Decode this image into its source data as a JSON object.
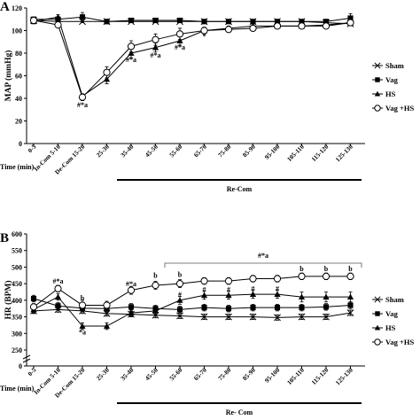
{
  "chart_data": [
    {
      "panel": "A",
      "type": "line",
      "ylabel": "MAP (mmHg)",
      "xlabel": "Time (min)",
      "ylim": [
        0,
        120
      ],
      "yticks": [
        0,
        20,
        40,
        60,
        80,
        100,
        120
      ],
      "categories": [
        "0-5",
        "In-Com 5-10",
        "De-Com 15-20",
        "25-30",
        "35-40",
        "45-50",
        "55-60",
        "65-70",
        "75-80",
        "85-90",
        "95-100",
        "105-110",
        "115-120",
        "125-130"
      ],
      "series": [
        {
          "name": "Sham",
          "marker": "x",
          "values": [
            109,
            108,
            108,
            108,
            108,
            108,
            108,
            108,
            108,
            108,
            108,
            108,
            107,
            106
          ],
          "errors": [
            1,
            1,
            1,
            1,
            1,
            1,
            1,
            1,
            1,
            1,
            1,
            1,
            1,
            1
          ]
        },
        {
          "name": "Vag",
          "marker": "square",
          "values": [
            110,
            110,
            112,
            108,
            109,
            109,
            109,
            108,
            108,
            108,
            108,
            108,
            108,
            111
          ],
          "errors": [
            2,
            2,
            4,
            2,
            1,
            1,
            1,
            1,
            1,
            1,
            1,
            1,
            1,
            4
          ]
        },
        {
          "name": "HS",
          "marker": "triangle",
          "values": [
            108,
            112,
            42,
            57,
            80,
            85,
            91,
            100,
            102,
            104,
            104,
            104,
            105,
            107
          ],
          "errors": [
            2,
            2,
            2,
            4,
            4,
            4,
            4,
            2,
            2,
            2,
            2,
            2,
            2,
            2
          ]
        },
        {
          "name": "Vag +HS",
          "marker": "circle",
          "values": [
            109,
            105,
            41,
            63,
            86,
            92,
            97,
            100,
            101,
            102,
            104,
            104,
            104,
            107
          ],
          "errors": [
            2,
            2,
            3,
            5,
            5,
            5,
            5,
            3,
            2,
            2,
            2,
            2,
            2,
            2
          ]
        }
      ],
      "annotations": [
        {
          "text": "#*a",
          "category": "De-Com 15-20",
          "value": 32
        },
        {
          "text": "#*a",
          "category": "35-40",
          "value": 72
        },
        {
          "text": "#*a",
          "category": "45-50",
          "value": 76
        },
        {
          "text": "#*a",
          "category": "55-60",
          "value": 83
        },
        {
          "text": "*",
          "category": "65-70",
          "value": 93
        }
      ],
      "bar_label": "Re-Com"
    },
    {
      "panel": "B",
      "type": "line",
      "ylabel": "HR (BPM)",
      "xlabel": "Time (min)",
      "ylim": [
        0,
        600
      ],
      "yticks": [
        0,
        250,
        300,
        350,
        400,
        450,
        500,
        550,
        600
      ],
      "categories": [
        "0-5",
        "In-Com 5-10",
        "De-Com 15-20",
        "25-30",
        "35-40",
        "45-50",
        "55-60",
        "65-70",
        "75-80",
        "85-90",
        "95-100",
        "105-110",
        "115-120",
        "125-130"
      ],
      "series": [
        {
          "name": "Sham",
          "marker": "x",
          "values": [
            368,
            372,
            368,
            360,
            358,
            355,
            353,
            350,
            350,
            350,
            348,
            350,
            350,
            362
          ],
          "errors": [
            8,
            8,
            8,
            8,
            8,
            8,
            8,
            8,
            8,
            8,
            8,
            8,
            8,
            8
          ]
        },
        {
          "name": "Vag",
          "marker": "square",
          "values": [
            405,
            383,
            376,
            375,
            380,
            375,
            372,
            378,
            375,
            378,
            378,
            378,
            380,
            385
          ],
          "errors": [
            10,
            10,
            10,
            10,
            10,
            10,
            10,
            10,
            10,
            10,
            10,
            10,
            10,
            10
          ]
        },
        {
          "name": "HS",
          "marker": "triangle",
          "values": [
            372,
            410,
            322,
            322,
            362,
            368,
            400,
            415,
            415,
            418,
            418,
            410,
            410,
            410
          ],
          "errors": [
            10,
            10,
            10,
            10,
            10,
            12,
            12,
            12,
            12,
            12,
            12,
            15,
            15,
            15
          ]
        },
        {
          "name": "Vag +HS",
          "marker": "circle",
          "values": [
            380,
            435,
            385,
            385,
            430,
            445,
            450,
            458,
            458,
            465,
            465,
            472,
            472,
            472
          ],
          "errors": [
            10,
            10,
            15,
            12,
            12,
            12,
            12,
            10,
            10,
            10,
            10,
            10,
            10,
            10
          ]
        }
      ],
      "annotations": [
        {
          "text": "#*a",
          "category": "In-Com 5-10",
          "value": 450
        },
        {
          "text": "b",
          "category": "De-Com 15-20",
          "value": 400
        },
        {
          "text": "*a",
          "category": "De-Com 15-20",
          "value": 297
        },
        {
          "text": "#*a",
          "category": "35-40",
          "value": 442
        },
        {
          "text": "b",
          "category": "45-50",
          "value": 468
        },
        {
          "text": "b",
          "category": "55-60",
          "value": 470
        },
        {
          "text": "#",
          "category": "55-60",
          "value": 410
        },
        {
          "text": "#",
          "category": "65-70",
          "value": 425
        },
        {
          "text": "#",
          "category": "75-80",
          "value": 425
        },
        {
          "text": "#",
          "category": "85-90",
          "value": 428
        },
        {
          "text": "#",
          "category": "95-100",
          "value": 428
        },
        {
          "text": "b",
          "category": "105-110",
          "value": 488
        },
        {
          "text": "b",
          "category": "115-120",
          "value": 488
        },
        {
          "text": "b",
          "category": "125-130",
          "value": 488
        }
      ],
      "bracket_label": "#*a",
      "bar_label": "Re- Com"
    }
  ]
}
